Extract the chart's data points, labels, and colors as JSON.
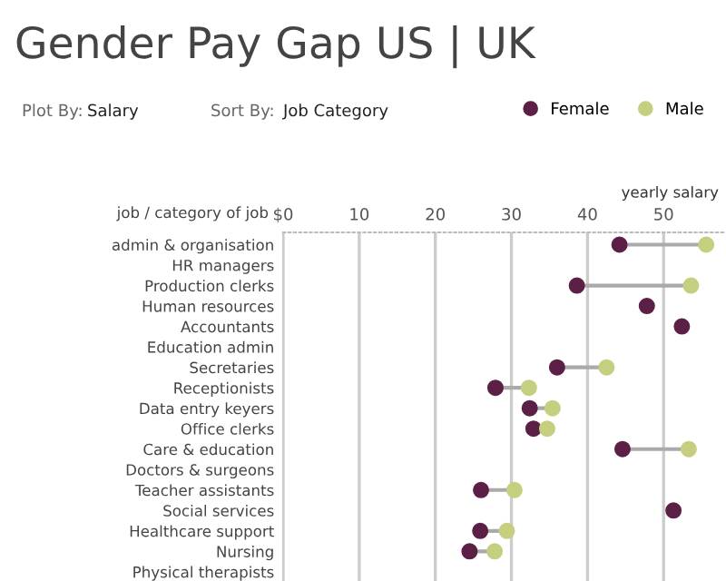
{
  "chart_data": {
    "type": "scatter",
    "title": "Gender Pay Gap US | UK",
    "xlabel": "yearly salary",
    "ylabel": "job / category of job",
    "annotations": [
      "Plot By:",
      "Salary",
      "Sort By:",
      "Job Category"
    ],
    "orientation": "horizontal",
    "categories": [
      "admin & organisation",
      "HR managers",
      "Production clerks",
      "Human resources",
      "Accountants",
      "Education admin",
      "Secretaries",
      "Receptionists",
      "Data entry keyers",
      "Office clerks",
      "Care & education",
      "Doctors & surgeons",
      "Teacher assistants",
      "Social services",
      "Healthcare support",
      "Nursing",
      "Physical therapists"
    ],
    "series": [
      {
        "name": "Female",
        "color": "#5c1f45",
        "values": [
          44.2,
          null,
          38.6,
          47.8,
          52.4,
          null,
          36.0,
          27.9,
          32.4,
          32.9,
          44.6,
          null,
          26.0,
          51.3,
          25.9,
          24.5,
          null
        ]
      },
      {
        "name": "Male",
        "color": "#c5cf7f",
        "values": [
          55.6,
          null,
          53.6,
          null,
          null,
          null,
          42.5,
          32.3,
          35.4,
          34.7,
          53.3,
          null,
          30.4,
          null,
          29.4,
          27.8,
          null
        ]
      }
    ],
    "xlim": [
      0,
      58.2
    ],
    "xticks": [
      {
        "value": 0,
        "label": "$0"
      },
      10,
      20,
      30,
      40,
      50
    ],
    "grid": "x",
    "legend": "top right",
    "marker": "circle"
  }
}
